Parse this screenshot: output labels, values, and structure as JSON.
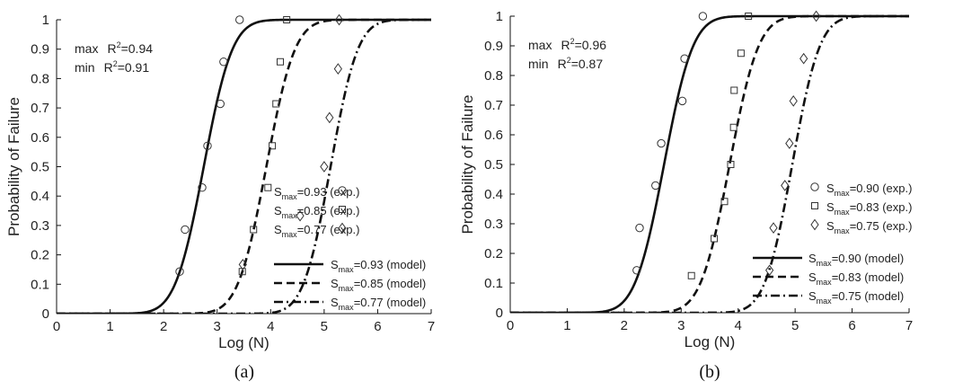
{
  "chart_data": [
    {
      "type": "line",
      "caption": "(a)",
      "xlabel": "Log (N)",
      "ylabel": "Probability of Failure",
      "xlim": [
        0,
        7
      ],
      "ylim": [
        0,
        1
      ],
      "xticks": [
        "0",
        "1",
        "2",
        "3",
        "4",
        "5",
        "6",
        "7"
      ],
      "yticks": [
        "0",
        "0.1",
        "0.2",
        "0.3",
        "0.4",
        "0.5",
        "0.6",
        "0.7",
        "0.8",
        "0.9",
        "1"
      ],
      "grid": false,
      "legend": "bottom-right",
      "annotations": [
        {
          "prefix": "max",
          "text": "R",
          "sup": "2",
          "value": "=0.94"
        },
        {
          "prefix": "min",
          "text": "R",
          "sup": "2",
          "value": "=0.91"
        }
      ],
      "series": [
        {
          "name_base": "S",
          "name_sub": "max",
          "name_rest": "=0.93 (model)",
          "kind": "model",
          "style": "solid",
          "mu": 2.75,
          "sigma": 0.42
        },
        {
          "name_base": "S",
          "name_sub": "max",
          "name_rest": "=0.85 (model)",
          "kind": "model",
          "style": "dashed",
          "mu": 3.92,
          "sigma": 0.42
        },
        {
          "name_base": "S",
          "name_sub": "max",
          "name_rest": "=0.77 (model)",
          "kind": "model",
          "style": "dashdot",
          "mu": 5.12,
          "sigma": 0.4
        },
        {
          "name_base": "S",
          "name_sub": "max",
          "name_rest": "=0.93 (exp.)",
          "kind": "exp",
          "marker": "circle",
          "points": [
            [
              2.3,
              0.143
            ],
            [
              2.4,
              0.286
            ],
            [
              2.72,
              0.429
            ],
            [
              2.82,
              0.571
            ],
            [
              3.06,
              0.714
            ],
            [
              3.12,
              0.857
            ],
            [
              3.42,
              1.0
            ]
          ]
        },
        {
          "name_base": "S",
          "name_sub": "max",
          "name_rest": "=0.85 (exp.)",
          "kind": "exp",
          "marker": "square",
          "points": [
            [
              3.47,
              0.143
            ],
            [
              3.68,
              0.286
            ],
            [
              3.95,
              0.429
            ],
            [
              4.03,
              0.571
            ],
            [
              4.1,
              0.714
            ],
            [
              4.18,
              0.857
            ],
            [
              4.3,
              1.0
            ]
          ]
        },
        {
          "name_base": "S",
          "name_sub": "max",
          "name_rest": "=0.77 (exp.)",
          "kind": "exp",
          "marker": "diamond",
          "points": [
            [
              3.48,
              0.167
            ],
            [
              4.55,
              0.333
            ],
            [
              5.0,
              0.5
            ],
            [
              5.1,
              0.667
            ],
            [
              5.26,
              0.833
            ],
            [
              5.28,
              1.0
            ]
          ]
        }
      ]
    },
    {
      "type": "line",
      "caption": "(b)",
      "xlabel": "Log (N)",
      "ylabel": "Probability of Failure",
      "xlim": [
        0,
        7
      ],
      "ylim": [
        0,
        1
      ],
      "xticks": [
        "0",
        "1",
        "2",
        "3",
        "4",
        "5",
        "6",
        "7"
      ],
      "yticks": [
        "0",
        "0.1",
        "0.2",
        "0.3",
        "0.4",
        "0.5",
        "0.6",
        "0.7",
        "0.8",
        "0.9",
        "1"
      ],
      "grid": false,
      "legend": "bottom-right",
      "annotations": [
        {
          "prefix": "max",
          "text": "R",
          "sup": "2",
          "value": "=0.96"
        },
        {
          "prefix": "min",
          "text": "R",
          "sup": "2",
          "value": "=0.87"
        }
      ],
      "series": [
        {
          "name_base": "S",
          "name_sub": "max",
          "name_rest": "=0.90 (model)",
          "kind": "model",
          "style": "solid",
          "mu": 2.7,
          "sigma": 0.4
        },
        {
          "name_base": "S",
          "name_sub": "max",
          "name_rest": "=0.83 (model)",
          "kind": "model",
          "style": "dashed",
          "mu": 3.85,
          "sigma": 0.4
        },
        {
          "name_base": "S",
          "name_sub": "max",
          "name_rest": "=0.75 (model)",
          "kind": "model",
          "style": "dashdot",
          "mu": 4.95,
          "sigma": 0.38
        },
        {
          "name_base": "S",
          "name_sub": "max",
          "name_rest": "=0.90 (exp.)",
          "kind": "exp",
          "marker": "circle",
          "points": [
            [
              2.22,
              0.143
            ],
            [
              2.27,
              0.286
            ],
            [
              2.55,
              0.429
            ],
            [
              2.65,
              0.571
            ],
            [
              3.02,
              0.714
            ],
            [
              3.06,
              0.857
            ],
            [
              3.38,
              1.0
            ]
          ]
        },
        {
          "name_base": "S",
          "name_sub": "max",
          "name_rest": "=0.83 (exp.)",
          "kind": "exp",
          "marker": "square",
          "points": [
            [
              3.18,
              0.125
            ],
            [
              3.58,
              0.25
            ],
            [
              3.76,
              0.375
            ],
            [
              3.87,
              0.5
            ],
            [
              3.92,
              0.625
            ],
            [
              3.93,
              0.75
            ],
            [
              4.05,
              0.875
            ],
            [
              4.18,
              1.0
            ]
          ]
        },
        {
          "name_base": "S",
          "name_sub": "max",
          "name_rest": "=0.75 (exp.)",
          "kind": "exp",
          "marker": "diamond",
          "points": [
            [
              4.55,
              0.143
            ],
            [
              4.62,
              0.286
            ],
            [
              4.82,
              0.429
            ],
            [
              4.9,
              0.571
            ],
            [
              4.97,
              0.714
            ],
            [
              5.15,
              0.857
            ],
            [
              5.37,
              1.0
            ]
          ]
        }
      ]
    }
  ]
}
